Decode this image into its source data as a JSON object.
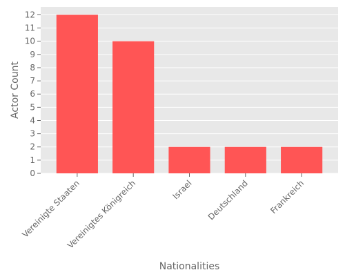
{
  "chart_data": {
    "type": "bar",
    "title": "",
    "xlabel": "Nationalities",
    "ylabel": "Actor Count",
    "categories": [
      "Vereinigte Staaten",
      "Vereinigtes Königreich",
      "Israel",
      "Deutschland",
      "Frankreich"
    ],
    "values": [
      12,
      10,
      2,
      2,
      2
    ],
    "ylim": [
      0,
      12.6
    ],
    "yticks": [
      0,
      1,
      2,
      3,
      4,
      5,
      6,
      7,
      8,
      9,
      10,
      11,
      12
    ],
    "grid": true,
    "legend": "none",
    "colors": {
      "bar": "#ff5555",
      "plot_background": "#e8e8e8",
      "grid": "#ffffff",
      "text": "#666666"
    }
  }
}
